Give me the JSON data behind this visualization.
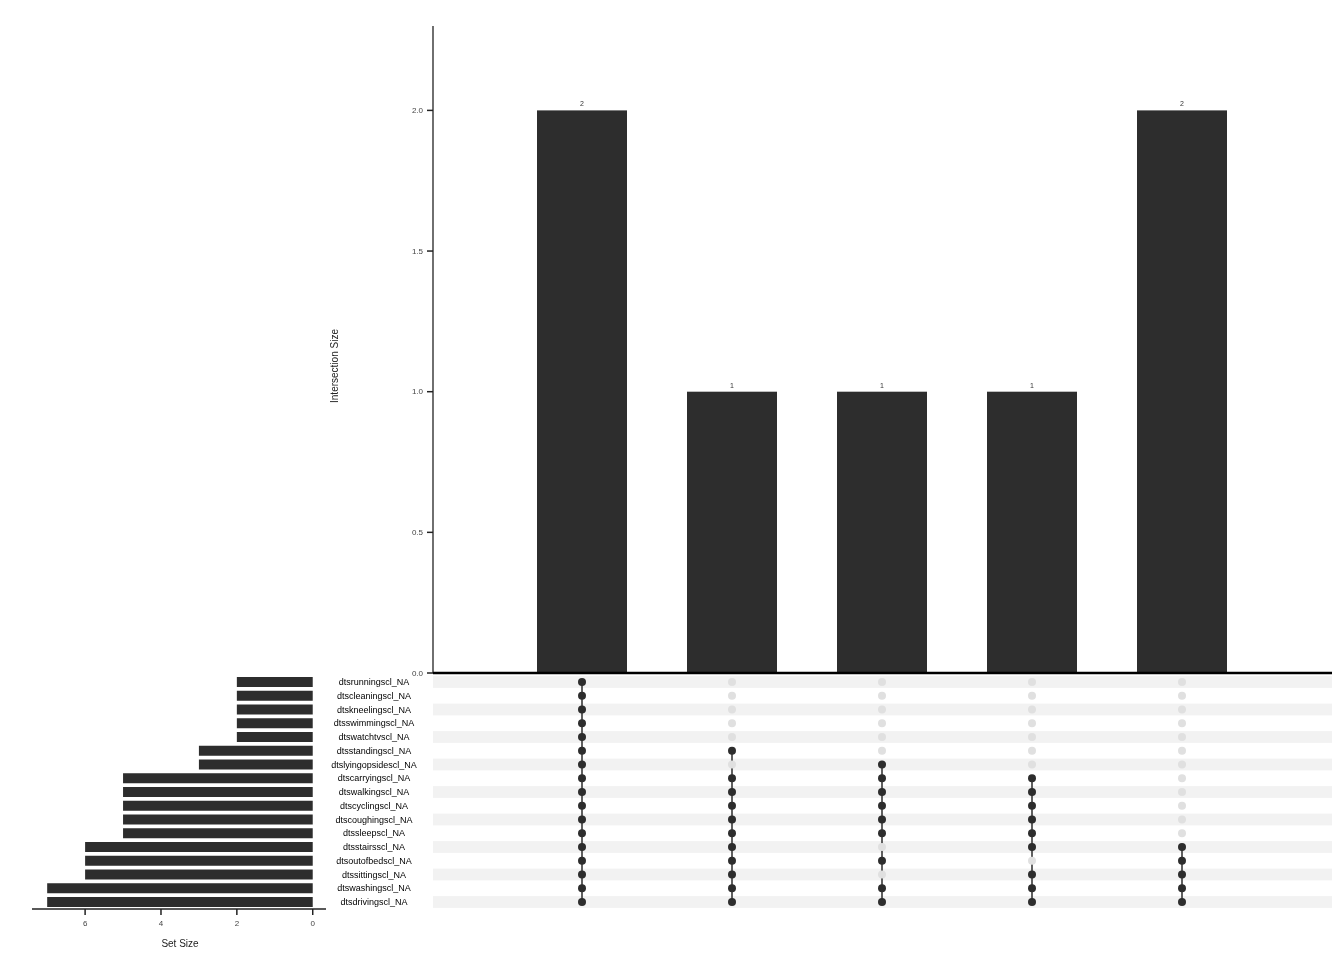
{
  "chart_data": [
    {
      "type": "bar",
      "ylabel": "Intersection Size",
      "categories": [
        null,
        null,
        null,
        null,
        null
      ],
      "values": [
        2,
        1,
        1,
        1,
        2
      ],
      "color": "#2d2d2d",
      "ylim": [
        0,
        2.3
      ],
      "yticks": [
        {
          "value": 0,
          "label": "0.0"
        },
        {
          "value": 0.5,
          "label": "0.5"
        },
        {
          "value": 1,
          "label": "1.0"
        },
        {
          "value": 1.5,
          "label": "1.5"
        },
        {
          "value": 2,
          "label": "2.0"
        }
      ],
      "data_labels": true
    },
    {
      "type": "bar",
      "orientation": "horizontal",
      "xlabel": "Set Size",
      "categories": [
        "dtsrunningscl_NA",
        "dtscleaningscl_NA",
        "dtskneelingscl_NA",
        "dtsswimmingscl_NA",
        "dtswatchtvscl_NA",
        "dtsstandingscl_NA",
        "dtslyingopsidescl_NA",
        "dtscarryingscl_NA",
        "dtswalkingscl_NA",
        "dtscyclingscl_NA",
        "dtscoughingscl_NA",
        "dtssleepscl_NA",
        "dtsstairsscl_NA",
        "dtsoutofbedscl_NA",
        "dtssittingscl_NA",
        "dtswashingscl_NA",
        "dtsdrivingscl_NA"
      ],
      "values": [
        2,
        2,
        2,
        2,
        2,
        3,
        3,
        5,
        5,
        5,
        5,
        5,
        6,
        6,
        6,
        7,
        7
      ],
      "color": "#2d2d2d",
      "xlim": [
        7.4,
        -0.35
      ],
      "xticks": [
        6,
        4,
        2,
        0
      ]
    }
  ]
}
